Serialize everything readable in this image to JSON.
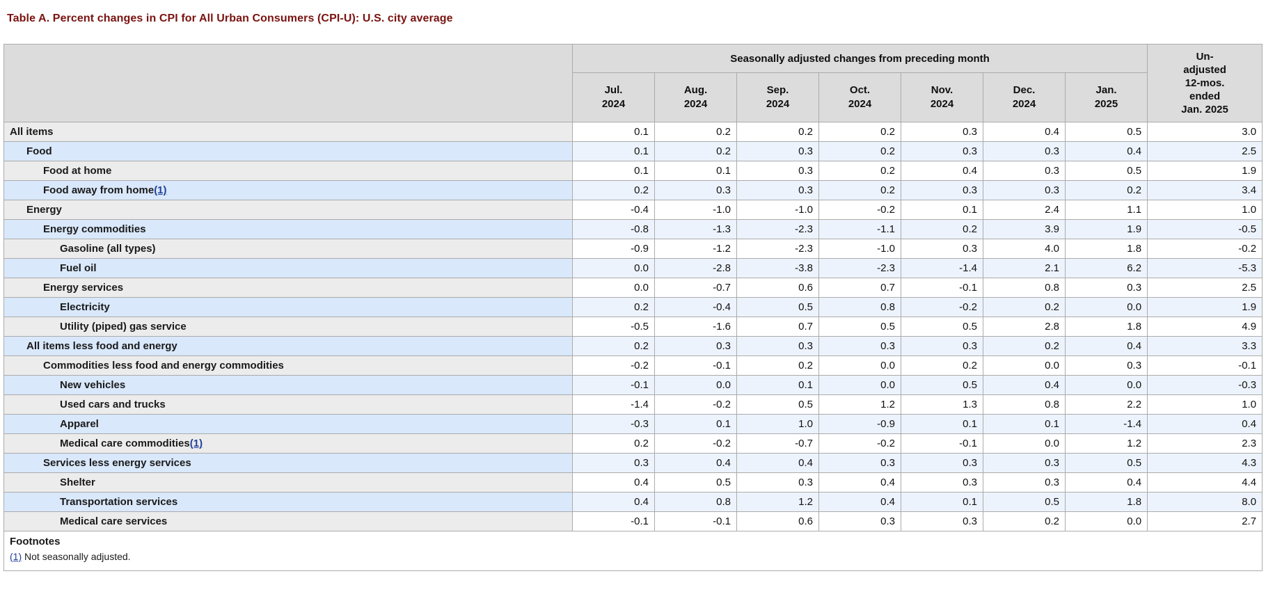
{
  "page_title": "Table A. Percent changes in CPI for All Urban Consumers (CPI-U): U.S. city average",
  "colors": {
    "title": "#7a1310",
    "header_bg": "#dcdcdc",
    "row_gray": "#ececec",
    "row_blue": "#d9e8fb",
    "cell_white": "#ffffff",
    "cell_blue": "#edf3fc",
    "border": "#ababab",
    "outer_border": "#8f8f8f",
    "link": "#22419b",
    "text": "#111111"
  },
  "table": {
    "group_header": "Seasonally adjusted changes from preceding month",
    "unadjusted_header_lines": [
      "Un-",
      "adjusted",
      "12-mos.",
      "ended",
      "Jan. 2025"
    ],
    "month_headers": [
      {
        "month": "Jul.",
        "year": "2024"
      },
      {
        "month": "Aug.",
        "year": "2024"
      },
      {
        "month": "Sep.",
        "year": "2024"
      },
      {
        "month": "Oct.",
        "year": "2024"
      },
      {
        "month": "Nov.",
        "year": "2024"
      },
      {
        "month": "Dec.",
        "year": "2024"
      },
      {
        "month": "Jan.",
        "year": "2025"
      }
    ],
    "rows": [
      {
        "label": "All items",
        "level": 0,
        "footnote": null,
        "values": [
          "0.1",
          "0.2",
          "0.2",
          "0.2",
          "0.3",
          "0.4",
          "0.5"
        ],
        "unadjusted": "3.0"
      },
      {
        "label": "Food",
        "level": 1,
        "footnote": null,
        "values": [
          "0.1",
          "0.2",
          "0.3",
          "0.2",
          "0.3",
          "0.3",
          "0.4"
        ],
        "unadjusted": "2.5"
      },
      {
        "label": "Food at home",
        "level": 2,
        "footnote": null,
        "values": [
          "0.1",
          "0.1",
          "0.3",
          "0.2",
          "0.4",
          "0.3",
          "0.5"
        ],
        "unadjusted": "1.9"
      },
      {
        "label": "Food away from home",
        "level": 2,
        "footnote": "(1)",
        "values": [
          "0.2",
          "0.3",
          "0.3",
          "0.2",
          "0.3",
          "0.3",
          "0.2"
        ],
        "unadjusted": "3.4"
      },
      {
        "label": "Energy",
        "level": 1,
        "footnote": null,
        "values": [
          "-0.4",
          "-1.0",
          "-1.0",
          "-0.2",
          "0.1",
          "2.4",
          "1.1"
        ],
        "unadjusted": "1.0"
      },
      {
        "label": "Energy commodities",
        "level": 2,
        "footnote": null,
        "values": [
          "-0.8",
          "-1.3",
          "-2.3",
          "-1.1",
          "0.2",
          "3.9",
          "1.9"
        ],
        "unadjusted": "-0.5"
      },
      {
        "label": "Gasoline (all types)",
        "level": 3,
        "footnote": null,
        "values": [
          "-0.9",
          "-1.2",
          "-2.3",
          "-1.0",
          "0.3",
          "4.0",
          "1.8"
        ],
        "unadjusted": "-0.2"
      },
      {
        "label": "Fuel oil",
        "level": 3,
        "footnote": null,
        "values": [
          "0.0",
          "-2.8",
          "-3.8",
          "-2.3",
          "-1.4",
          "2.1",
          "6.2"
        ],
        "unadjusted": "-5.3"
      },
      {
        "label": "Energy services",
        "level": 2,
        "footnote": null,
        "values": [
          "0.0",
          "-0.7",
          "0.6",
          "0.7",
          "-0.1",
          "0.8",
          "0.3"
        ],
        "unadjusted": "2.5"
      },
      {
        "label": "Electricity",
        "level": 3,
        "footnote": null,
        "values": [
          "0.2",
          "-0.4",
          "0.5",
          "0.8",
          "-0.2",
          "0.2",
          "0.0"
        ],
        "unadjusted": "1.9"
      },
      {
        "label": "Utility (piped) gas service",
        "level": 3,
        "footnote": null,
        "values": [
          "-0.5",
          "-1.6",
          "0.7",
          "0.5",
          "0.5",
          "2.8",
          "1.8"
        ],
        "unadjusted": "4.9"
      },
      {
        "label": "All items less food and energy",
        "level": 1,
        "footnote": null,
        "values": [
          "0.2",
          "0.3",
          "0.3",
          "0.3",
          "0.3",
          "0.2",
          "0.4"
        ],
        "unadjusted": "3.3"
      },
      {
        "label": "Commodities less food and energy commodities",
        "level": 2,
        "footnote": null,
        "values": [
          "-0.2",
          "-0.1",
          "0.2",
          "0.0",
          "0.2",
          "0.0",
          "0.3"
        ],
        "unadjusted": "-0.1"
      },
      {
        "label": "New vehicles",
        "level": 3,
        "footnote": null,
        "values": [
          "-0.1",
          "0.0",
          "0.1",
          "0.0",
          "0.5",
          "0.4",
          "0.0"
        ],
        "unadjusted": "-0.3"
      },
      {
        "label": "Used cars and trucks",
        "level": 3,
        "footnote": null,
        "values": [
          "-1.4",
          "-0.2",
          "0.5",
          "1.2",
          "1.3",
          "0.8",
          "2.2"
        ],
        "unadjusted": "1.0"
      },
      {
        "label": "Apparel",
        "level": 3,
        "footnote": null,
        "values": [
          "-0.3",
          "0.1",
          "1.0",
          "-0.9",
          "0.1",
          "0.1",
          "-1.4"
        ],
        "unadjusted": "0.4"
      },
      {
        "label": "Medical care commodities",
        "level": 3,
        "footnote": "(1)",
        "values": [
          "0.2",
          "-0.2",
          "-0.7",
          "-0.2",
          "-0.1",
          "0.0",
          "1.2"
        ],
        "unadjusted": "2.3"
      },
      {
        "label": "Services less energy services",
        "level": 2,
        "footnote": null,
        "values": [
          "0.3",
          "0.4",
          "0.4",
          "0.3",
          "0.3",
          "0.3",
          "0.5"
        ],
        "unadjusted": "4.3"
      },
      {
        "label": "Shelter",
        "level": 3,
        "footnote": null,
        "values": [
          "0.4",
          "0.5",
          "0.3",
          "0.4",
          "0.3",
          "0.3",
          "0.4"
        ],
        "unadjusted": "4.4"
      },
      {
        "label": "Transportation services",
        "level": 3,
        "footnote": null,
        "values": [
          "0.4",
          "0.8",
          "1.2",
          "0.4",
          "0.1",
          "0.5",
          "1.8"
        ],
        "unadjusted": "8.0"
      },
      {
        "label": "Medical care services",
        "level": 3,
        "footnote": null,
        "values": [
          "-0.1",
          "-0.1",
          "0.6",
          "0.3",
          "0.3",
          "0.2",
          "0.0"
        ],
        "unadjusted": "2.7"
      }
    ],
    "footnotes": {
      "heading": "Footnotes",
      "items": [
        {
          "marker": "(1)",
          "text": "Not seasonally adjusted."
        }
      ]
    }
  }
}
